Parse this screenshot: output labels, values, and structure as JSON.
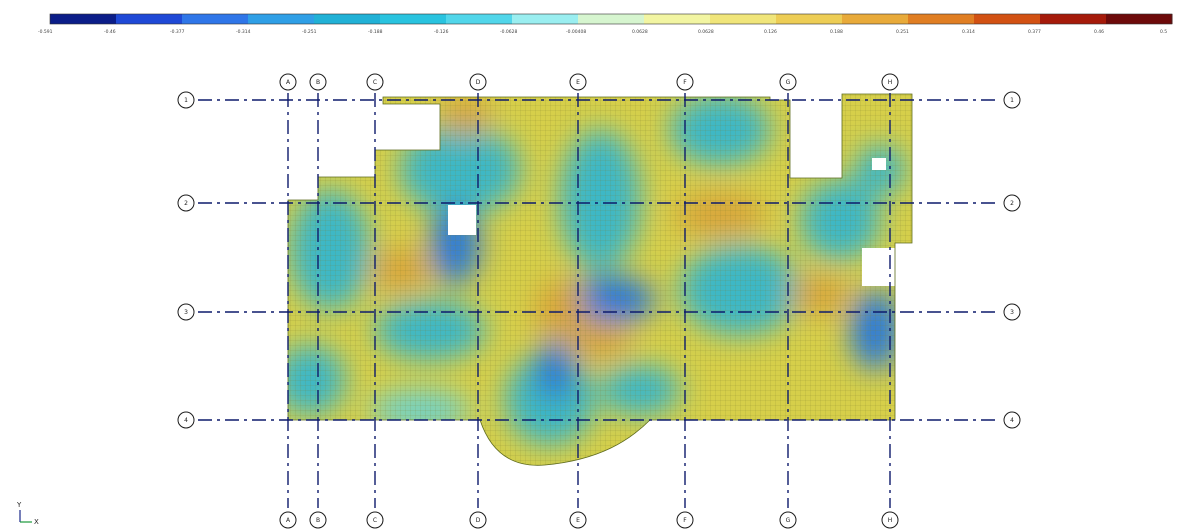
{
  "legend": {
    "colors": [
      "#0b1d88",
      "#1f49d6",
      "#2f76e8",
      "#2f9fe6",
      "#21b1d6",
      "#29c3df",
      "#51d6ea",
      "#9aeef0",
      "#d6f5cf",
      "#f2f5a2",
      "#f0e57a",
      "#edcd55",
      "#e8aa3a",
      "#e07e23",
      "#d25113",
      "#a51a0a",
      "#6d0a0a"
    ],
    "values": [
      "-0.591",
      "-0.46",
      "-0.377",
      "-0.314",
      "-0.251",
      "-0.188",
      "-0.126",
      "-0.0628",
      "-0.00408",
      "0.0628",
      "0.0628",
      "0.126",
      "0.188",
      "0.251",
      "0.314",
      "0.377",
      "0.46",
      "0.5"
    ]
  },
  "grid": {
    "vertical": [
      {
        "label": "A"
      },
      {
        "label": "B"
      },
      {
        "label": "C"
      },
      {
        "label": "D"
      },
      {
        "label": "E"
      },
      {
        "label": "F"
      },
      {
        "label": "G"
      },
      {
        "label": "H"
      }
    ],
    "horizontal": [
      {
        "label": "1"
      },
      {
        "label": "2"
      },
      {
        "label": "3"
      },
      {
        "label": "4"
      }
    ]
  },
  "field_colors": {
    "yellow": "#d6cf4a",
    "yellow_light": "#e2dc62",
    "orange": "#d9a63a",
    "cyan": "#3db8c6",
    "cyan_light": "#6fd1c8",
    "blue": "#2a7ad8",
    "deep_blue": "#1c4fc0",
    "mesh_line": "#8c8c2a",
    "grid_line": "#0d1a6b"
  },
  "axis": {
    "x": "X",
    "y": "Y"
  }
}
